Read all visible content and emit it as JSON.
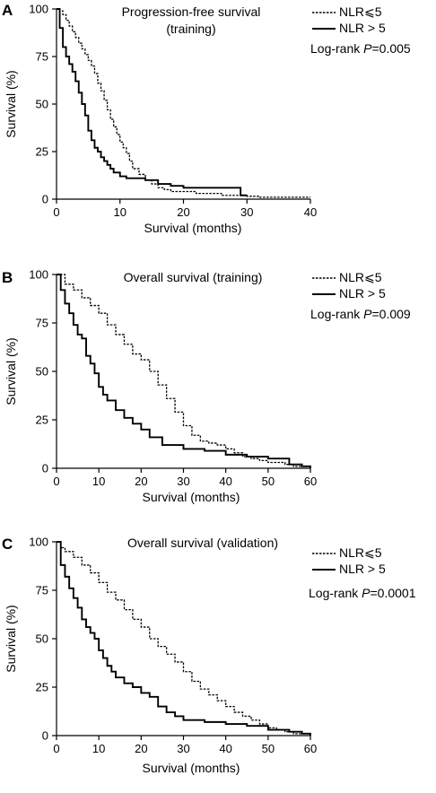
{
  "chart_data": [
    {
      "type": "line",
      "panel": "A",
      "title": "Progression-free survival\n(training)",
      "title_line1": "Progression-free survival",
      "title_line2": "(training)",
      "xlabel": "Survival (months)",
      "ylabel": "Survival (%)",
      "xlim": [
        0,
        40
      ],
      "ylim": [
        0,
        100
      ],
      "xticks": [
        0,
        10,
        20,
        30,
        40
      ],
      "yticks": [
        0,
        25,
        50,
        75,
        100
      ],
      "annotation": "Log-rank P=0.005",
      "annotation_prefix": "Log-rank ",
      "annotation_p": "P",
      "annotation_value": "=0.005",
      "grid": false,
      "legend_position": "top-right",
      "series": [
        {
          "name": "NLR⩽5",
          "style": "dashed",
          "x": [
            0,
            0.5,
            1,
            1.5,
            2,
            2.5,
            3,
            3.5,
            4,
            4.5,
            5,
            5.5,
            6,
            6.5,
            7,
            7.5,
            8,
            8.5,
            9,
            9.5,
            10,
            10.5,
            11,
            11.5,
            12,
            13,
            14,
            15,
            16,
            17,
            18,
            20,
            22,
            24,
            26,
            28,
            30,
            32,
            34,
            36,
            38,
            40
          ],
          "y": [
            100,
            99,
            97,
            94,
            91,
            88,
            85,
            82,
            79,
            76,
            73,
            70,
            66,
            61,
            57,
            52,
            47,
            42,
            38,
            34,
            30,
            27,
            24,
            20,
            16,
            13,
            10,
            8,
            6,
            5,
            4,
            4,
            3,
            3,
            2,
            2,
            1.5,
            1,
            1,
            1,
            1,
            1
          ]
        },
        {
          "name": "NLR > 5",
          "style": "solid",
          "x": [
            0,
            0.5,
            1,
            1.5,
            2,
            2.5,
            3,
            3.5,
            4,
            4.5,
            5,
            5.5,
            6,
            6.5,
            7,
            7.5,
            8,
            8.5,
            9,
            10,
            11,
            12,
            14,
            16,
            18,
            20,
            22,
            24,
            26,
            28,
            29,
            30
          ],
          "y": [
            100,
            90,
            80,
            75,
            71,
            67,
            62,
            56,
            50,
            44,
            36,
            31,
            27,
            25,
            22,
            20,
            18,
            16,
            14,
            12,
            11,
            11,
            10,
            8,
            7,
            6,
            6,
            6,
            6,
            6,
            2,
            2
          ]
        }
      ]
    },
    {
      "type": "line",
      "panel": "B",
      "title": "Overall survival (training)",
      "xlabel": "Survival (months)",
      "ylabel": "Survival (%)",
      "xlim": [
        0,
        60
      ],
      "ylim": [
        0,
        100
      ],
      "xticks": [
        0,
        10,
        20,
        30,
        40,
        50,
        60
      ],
      "yticks": [
        0,
        25,
        50,
        75,
        100
      ],
      "annotation": "Log-rank P=0.009",
      "annotation_prefix": "Log-rank ",
      "annotation_p": "P",
      "annotation_value": "=0.009",
      "grid": false,
      "legend_position": "top-right",
      "series": [
        {
          "name": "NLR⩽5",
          "style": "dashed",
          "x": [
            0,
            2,
            4,
            6,
            8,
            10,
            12,
            14,
            16,
            18,
            20,
            22,
            24,
            26,
            28,
            30,
            32,
            34,
            36,
            38,
            40,
            42,
            44,
            46,
            48,
            50,
            52,
            54,
            56,
            58,
            60
          ],
          "y": [
            100,
            95,
            92,
            88,
            84,
            80,
            74,
            69,
            64,
            59,
            56,
            50,
            43,
            36,
            29,
            22,
            17,
            14,
            13,
            12,
            10,
            8,
            6,
            5,
            4,
            3,
            3,
            2,
            1,
            1,
            1
          ]
        },
        {
          "name": "NLR > 5",
          "style": "solid",
          "x": [
            0,
            1,
            2,
            3,
            4,
            5,
            6,
            7,
            8,
            9,
            10,
            11,
            12,
            14,
            16,
            18,
            20,
            22,
            25,
            28,
            30,
            35,
            40,
            45,
            50,
            55,
            58,
            60
          ],
          "y": [
            100,
            92,
            85,
            80,
            74,
            69,
            67,
            58,
            54,
            49,
            42,
            38,
            35,
            30,
            26,
            23,
            20,
            16,
            12,
            12,
            10,
            9,
            7,
            6,
            5,
            2,
            1,
            0
          ]
        }
      ]
    },
    {
      "type": "line",
      "panel": "C",
      "title": "Overall survival (validation)",
      "xlabel": "Survival (months)",
      "ylabel": "Survival (%)",
      "xlim": [
        0,
        60
      ],
      "ylim": [
        0,
        100
      ],
      "xticks": [
        0,
        10,
        20,
        30,
        40,
        50,
        60
      ],
      "yticks": [
        0,
        25,
        50,
        75,
        100
      ],
      "annotation": "Log-rank P=0.0001",
      "annotation_prefix": "Log-rank ",
      "annotation_p": "P",
      "annotation_value": "=0.0001",
      "grid": false,
      "legend_position": "top-right",
      "series": [
        {
          "name": "NLR⩽5",
          "style": "dashed",
          "x": [
            0,
            1,
            2,
            4,
            6,
            8,
            10,
            12,
            14,
            16,
            18,
            20,
            22,
            24,
            26,
            28,
            30,
            32,
            34,
            36,
            38,
            40,
            42,
            44,
            46,
            48,
            50,
            52,
            54,
            56,
            58,
            60
          ],
          "y": [
            100,
            97,
            95,
            92,
            88,
            84,
            79,
            74,
            70,
            65,
            60,
            56,
            50,
            46,
            42,
            38,
            33,
            28,
            24,
            21,
            18,
            15,
            12,
            10,
            8,
            6,
            4,
            3,
            2,
            1,
            1,
            0
          ]
        },
        {
          "name": "NLR > 5",
          "style": "solid",
          "x": [
            0,
            1,
            2,
            3,
            4,
            5,
            6,
            7,
            8,
            9,
            10,
            11,
            12,
            13,
            14,
            16,
            18,
            20,
            22,
            24,
            26,
            28,
            30,
            35,
            40,
            45,
            50,
            55,
            58,
            60
          ],
          "y": [
            100,
            88,
            82,
            76,
            71,
            66,
            60,
            56,
            53,
            50,
            44,
            40,
            36,
            33,
            30,
            27,
            25,
            22,
            20,
            15,
            12,
            10,
            8,
            7,
            6,
            5,
            3,
            2,
            1,
            0
          ]
        }
      ]
    }
  ]
}
